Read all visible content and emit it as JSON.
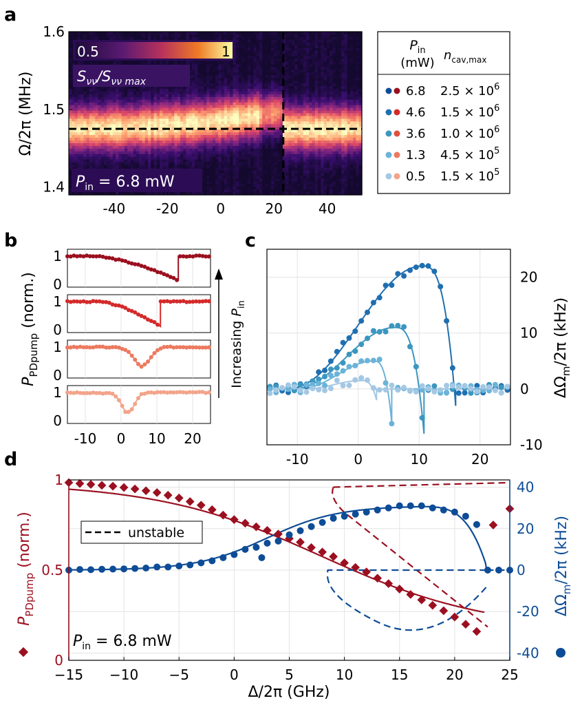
{
  "colors": {
    "dark_red": "#9b1020",
    "red": "#d42a2a",
    "red_mid": "#e0503e",
    "salmon": "#ec7a5f",
    "peach": "#f2a48a",
    "dark_blue": "#0d4c96",
    "blue": "#1f6fb0",
    "blue_mid": "#3b96c0",
    "light_blue": "#6bb3d8",
    "pale_blue": "#a4c8e4"
  },
  "chart_data": [
    {
      "panel": "a",
      "type": "heatmap",
      "ylabel": "Ω/2π (MHz)",
      "xticks": [
        "-40",
        "-20",
        "0",
        "20",
        "40"
      ],
      "xtick_values": [
        -40,
        -20,
        0,
        20,
        40
      ],
      "yticks": [
        "1.4",
        "1.5",
        "1.6"
      ],
      "ytick_values": [
        1.4,
        1.5,
        1.6
      ],
      "xlim": [
        -57,
        53
      ],
      "ylim": [
        1.39,
        1.6
      ],
      "colorbar": {
        "min_label": "0.5",
        "max_label": "1",
        "label": "S_{νν}/S_{νν max}"
      },
      "annotation": "P_in = 6.8 mW",
      "vertical_dashed_line_x": 23.5,
      "horizontal_dashed_line_y": 1.475,
      "peak_frequency_left": 1.475,
      "peak_frequency_max": 1.497,
      "peak_frequency_right": 1.475,
      "legend": {
        "header_pin": "P_in",
        "header_pin_unit": "(mW)",
        "header_ncav": "n_cav,max",
        "entries": [
          {
            "pin": "6.8",
            "ncav": "2.5 × 10",
            "exp": "6"
          },
          {
            "pin": "4.6",
            "ncav": "1.5 × 10",
            "exp": "6"
          },
          {
            "pin": "3.6",
            "ncav": "1.0 × 10",
            "exp": "6"
          },
          {
            "pin": "1.3",
            "ncav": "4.5 × 10",
            "exp": "5"
          },
          {
            "pin": "0.5",
            "ncav": "1.5 × 10",
            "exp": "5"
          }
        ]
      }
    },
    {
      "panel": "b",
      "type": "scatter",
      "ylabel": "P_PDpump (norm.)",
      "side_label": "Increasing P_in",
      "xticks": [
        "-10",
        "0",
        "10",
        "20"
      ],
      "xtick_values": [
        -10,
        0,
        10,
        20
      ],
      "yticks": [
        "0",
        "1"
      ],
      "xlim": [
        -15,
        25
      ],
      "series": [
        {
          "pin": "6.8",
          "dip_center": 15.5,
          "dip_width": 11,
          "floor": 0.15,
          "jump_x": 16
        },
        {
          "pin": "4.6",
          "dip_center": 10.5,
          "dip_width": 8,
          "floor": 0.12,
          "jump_x": 11
        },
        {
          "pin": "1.3",
          "dip_center": 6,
          "dip_width": 3.2,
          "floor": 0.35,
          "jump_x": null
        },
        {
          "pin": "0.5",
          "dip_center": 2,
          "dip_width": 2.5,
          "floor": 0.3,
          "jump_x": null
        }
      ]
    },
    {
      "panel": "c",
      "type": "scatter",
      "ylabel": "ΔΩ_m/2π (kHz)",
      "xticks": [
        "-10",
        "0",
        "10",
        "20"
      ],
      "xtick_values": [
        -10,
        0,
        10,
        20
      ],
      "yticks": [
        "-10",
        "0",
        "10",
        "20"
      ],
      "ytick_values": [
        -10,
        0,
        10,
        20
      ],
      "xlim": [
        -15,
        25
      ],
      "ylim": [
        -10,
        25
      ],
      "series": [
        {
          "pin": "6.8",
          "peak_x": 10.5,
          "peak_y": 22,
          "end_x": 16,
          "end_y": -3,
          "x0": -12
        },
        {
          "pin": "4.6",
          "peak_x": 6,
          "peak_y": 11,
          "end_x": 10.8,
          "end_y": -8,
          "x0": -11
        },
        {
          "pin": "3.6",
          "peak_x": 2.5,
          "peak_y": 5,
          "end_x": 5.5,
          "end_y": -6,
          "x0": -10
        },
        {
          "pin": "1.3",
          "peak_x": 0.5,
          "peak_y": 1.5,
          "end_x": 3,
          "end_y": -2,
          "x0": -9
        }
      ]
    },
    {
      "panel": "d",
      "type": "line",
      "xlabel": "Δ/2π (GHz)",
      "ylabel_left": "P_PDpump (norm.)",
      "ylabel_right": "ΔΩ_m/2π (kHz)",
      "xticks": [
        "−15",
        "−10",
        "−5",
        "0",
        "5",
        "10",
        "15",
        "20",
        "25"
      ],
      "xtick_values": [
        -15,
        -10,
        -5,
        0,
        5,
        10,
        15,
        20,
        25
      ],
      "yticks_left": [
        "0",
        "0.5",
        "1"
      ],
      "ytick_values_left": [
        0,
        0.5,
        1
      ],
      "yticks_right": [
        "-40",
        "-20",
        "0",
        "20",
        "40"
      ],
      "ytick_values_right": [
        -40,
        -20,
        0,
        20,
        40
      ],
      "xlim": [
        -15,
        25
      ],
      "ylim_left": [
        0,
        1
      ],
      "ylim_right": [
        -43.5,
        43.5
      ],
      "legend_label": "unstable",
      "annotation": "P_in = 6.8 mW",
      "pump_points": [
        [
          -15,
          0.985
        ],
        [
          -14,
          0.98
        ],
        [
          -13,
          0.975
        ],
        [
          -12,
          0.97
        ],
        [
          -11,
          0.965
        ],
        [
          -10,
          0.958
        ],
        [
          -9,
          0.95
        ],
        [
          -8,
          0.94
        ],
        [
          -7,
          0.93
        ],
        [
          -6,
          0.915
        ],
        [
          -5,
          0.9
        ],
        [
          -4,
          0.88
        ],
        [
          -3,
          0.86
        ],
        [
          -2,
          0.835
        ],
        [
          -1,
          0.805
        ],
        [
          0,
          0.78
        ],
        [
          1,
          0.76
        ],
        [
          2,
          0.74
        ],
        [
          3,
          0.72
        ],
        [
          4,
          0.7
        ],
        [
          5,
          0.675
        ],
        [
          6,
          0.655
        ],
        [
          7,
          0.625
        ],
        [
          8,
          0.6
        ],
        [
          9,
          0.575
        ],
        [
          10,
          0.54
        ],
        [
          11,
          0.515
        ],
        [
          12,
          0.49
        ],
        [
          13,
          0.455
        ],
        [
          14,
          0.425
        ],
        [
          15,
          0.395
        ],
        [
          16,
          0.365
        ],
        [
          17,
          0.335
        ],
        [
          18,
          0.305
        ],
        [
          19,
          0.275
        ],
        [
          20,
          0.24
        ],
        [
          21,
          0.2
        ],
        [
          22,
          0.16
        ],
        [
          23.5,
          0.75
        ],
        [
          25,
          0.84
        ]
      ],
      "shift_points": [
        [
          -15,
          0
        ],
        [
          -14,
          0.3
        ],
        [
          -13,
          0.2
        ],
        [
          -12,
          0.4
        ],
        [
          -11,
          0.5
        ],
        [
          -10,
          0.6
        ],
        [
          -9,
          0.8
        ],
        [
          -8,
          1
        ],
        [
          -7,
          1.5
        ],
        [
          -6,
          1.5
        ],
        [
          -5,
          2
        ],
        [
          -4,
          2.5
        ],
        [
          -3,
          3.5
        ],
        [
          -2,
          4.5
        ],
        [
          -1,
          6
        ],
        [
          0,
          7.5
        ],
        [
          1,
          10
        ],
        [
          2,
          11
        ],
        [
          2.5,
          6
        ],
        [
          3,
          13
        ],
        [
          4,
          14
        ],
        [
          5,
          17
        ],
        [
          6,
          19
        ],
        [
          7,
          21
        ],
        [
          8,
          23
        ],
        [
          9,
          25
        ],
        [
          10,
          26
        ],
        [
          11,
          27
        ],
        [
          12,
          28
        ],
        [
          13,
          29
        ],
        [
          14,
          30
        ],
        [
          15,
          31
        ],
        [
          16,
          31
        ],
        [
          17,
          31
        ],
        [
          18,
          30
        ],
        [
          19,
          29
        ],
        [
          20,
          28
        ],
        [
          21,
          26
        ],
        [
          22,
          22
        ],
        [
          23,
          0
        ],
        [
          24,
          0
        ],
        [
          25,
          0
        ]
      ]
    }
  ]
}
